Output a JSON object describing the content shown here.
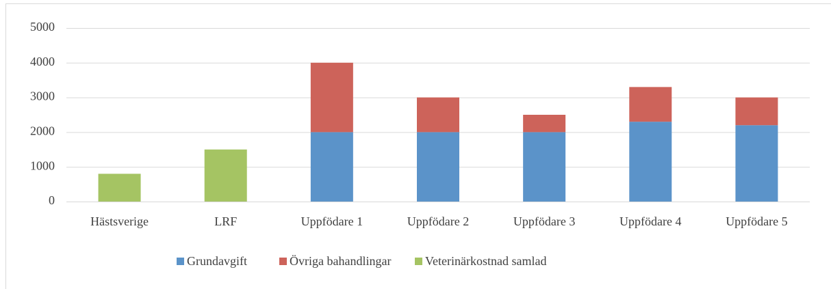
{
  "chart_data": {
    "type": "stacked_bar",
    "categories": [
      "Hästsverige",
      "LRF",
      "Uppfödare 1",
      "Uppfödare 2",
      "Uppfödare 3",
      "Uppfödare 4",
      "Uppfödare 5"
    ],
    "series": [
      {
        "name": "Grundavgift",
        "color": "#5b93c9",
        "values": [
          null,
          null,
          2000,
          2000,
          2000,
          2300,
          2200
        ]
      },
      {
        "name": "Övriga bahandlingar",
        "color": "#cd635a",
        "values": [
          null,
          null,
          2000,
          1000,
          500,
          1000,
          800
        ]
      },
      {
        "name": "Veterinärkostnad samlad",
        "color": "#a5c463",
        "values": [
          800,
          1500,
          null,
          null,
          null,
          null,
          null
        ]
      }
    ],
    "ylim": [
      0,
      5000
    ],
    "yticks": [
      0,
      1000,
      2000,
      3000,
      4000,
      5000
    ],
    "grid": true,
    "legend": "bottom"
  }
}
